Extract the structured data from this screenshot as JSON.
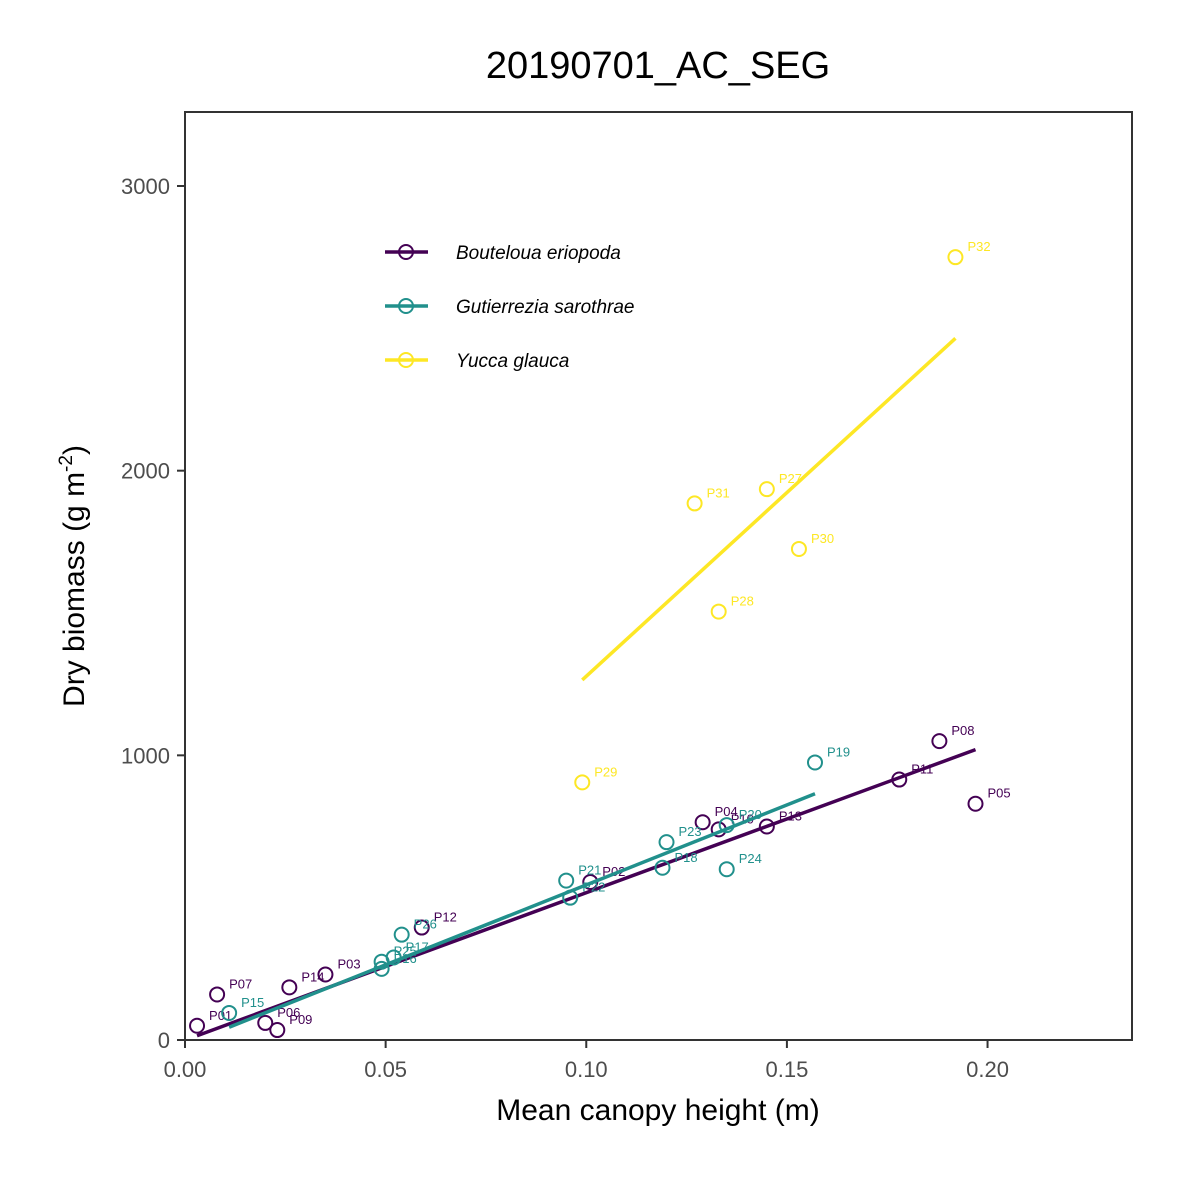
{
  "chart_data": {
    "type": "scatter",
    "title": "20190701_AC_SEG",
    "xlabel": "Mean canopy height (m)",
    "ylabel": "Dry biomass (g m",
    "ylabel_sup": "-2",
    "ylabel_close": ")",
    "xlim": [
      0,
      0.236
    ],
    "ylim": [
      0,
      3260
    ],
    "x_ticks": [
      0.0,
      0.05,
      0.1,
      0.15,
      0.2
    ],
    "x_tick_labels": [
      "0.00",
      "0.05",
      "0.10",
      "0.15",
      "0.20"
    ],
    "y_ticks": [
      0,
      1000,
      2000,
      3000
    ],
    "y_tick_labels": [
      "0",
      "1000",
      "2000",
      "3000"
    ],
    "grid": false,
    "legend_position": "top-left inside",
    "series": [
      {
        "name": "Bouteloua eriopoda",
        "color": "#440154",
        "points": [
          {
            "label": "P01",
            "x": 0.003,
            "y": 50
          },
          {
            "label": "P07",
            "x": 0.008,
            "y": 160
          },
          {
            "label": "P06",
            "x": 0.02,
            "y": 60
          },
          {
            "label": "P09",
            "x": 0.023,
            "y": 35
          },
          {
            "label": "P14",
            "x": 0.026,
            "y": 185
          },
          {
            "label": "P03",
            "x": 0.035,
            "y": 230
          },
          {
            "label": "P12",
            "x": 0.059,
            "y": 395
          },
          {
            "label": "P02",
            "x": 0.101,
            "y": 555
          },
          {
            "label": "P04",
            "x": 0.129,
            "y": 765
          },
          {
            "label": "P10",
            "x": 0.133,
            "y": 740
          },
          {
            "label": "P13",
            "x": 0.145,
            "y": 750
          },
          {
            "label": "P11",
            "x": 0.178,
            "y": 915
          },
          {
            "label": "P08",
            "x": 0.188,
            "y": 1050
          },
          {
            "label": "P05",
            "x": 0.197,
            "y": 830
          }
        ],
        "fit": [
          [
            0.003,
            15
          ],
          [
            0.197,
            1020
          ]
        ]
      },
      {
        "name": "Gutierrezia sarothrae",
        "color": "#21908C",
        "points": [
          {
            "label": "P15",
            "x": 0.011,
            "y": 95
          },
          {
            "label": "P16",
            "x": 0.049,
            "y": 250
          },
          {
            "label": "P17",
            "x": 0.052,
            "y": 290
          },
          {
            "label": "P25",
            "x": 0.049,
            "y": 275
          },
          {
            "label": "P26",
            "x": 0.054,
            "y": 370
          },
          {
            "label": "P22",
            "x": 0.096,
            "y": 500
          },
          {
            "label": "P21",
            "x": 0.095,
            "y": 560
          },
          {
            "label": "P18",
            "x": 0.119,
            "y": 605
          },
          {
            "label": "P23",
            "x": 0.12,
            "y": 695
          },
          {
            "label": "P20",
            "x": 0.135,
            "y": 755
          },
          {
            "label": "P24",
            "x": 0.135,
            "y": 600
          },
          {
            "label": "P19",
            "x": 0.157,
            "y": 975
          }
        ],
        "fit": [
          [
            0.011,
            45
          ],
          [
            0.157,
            865
          ]
        ]
      },
      {
        "name": "Yucca glauca",
        "color": "#FDE725",
        "points": [
          {
            "label": "P29",
            "x": 0.099,
            "y": 905
          },
          {
            "label": "P31",
            "x": 0.127,
            "y": 1885
          },
          {
            "label": "P28",
            "x": 0.133,
            "y": 1505
          },
          {
            "label": "P27",
            "x": 0.145,
            "y": 1935
          },
          {
            "label": "P30",
            "x": 0.153,
            "y": 1725
          },
          {
            "label": "P32",
            "x": 0.192,
            "y": 2750
          }
        ],
        "fit": [
          [
            0.099,
            1265
          ],
          [
            0.192,
            2465
          ]
        ]
      }
    ]
  }
}
